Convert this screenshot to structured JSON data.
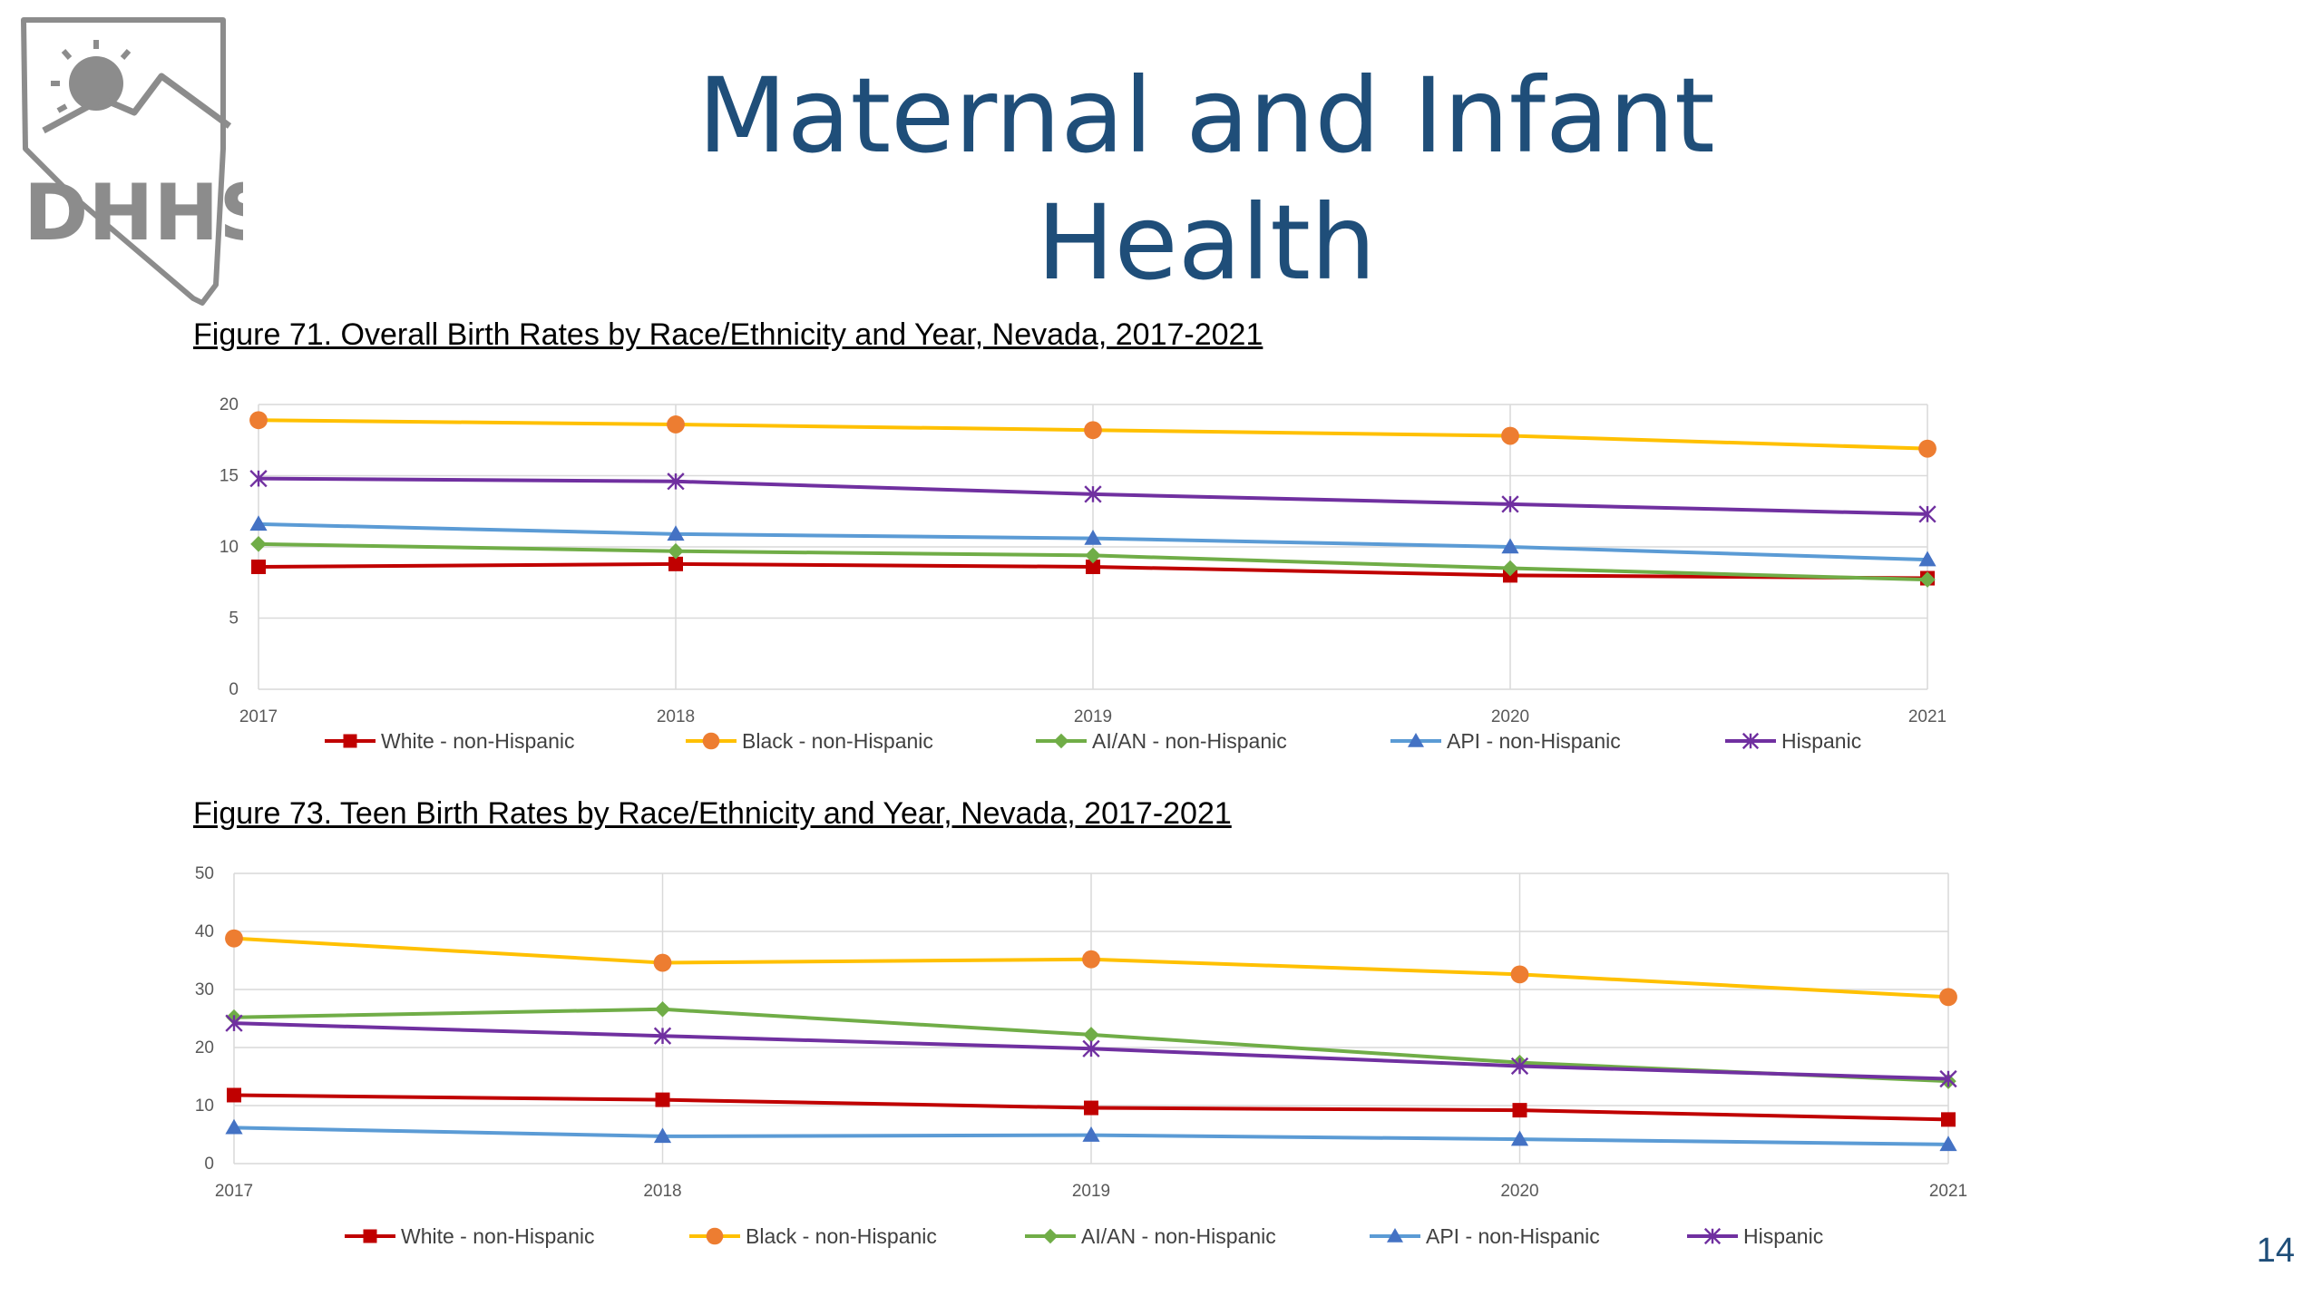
{
  "slide": {
    "title": "Maternal and Infant Health",
    "page_number": "14"
  },
  "logo": {
    "text": "DHHS",
    "colors": {
      "logo": "#8c8c8c"
    }
  },
  "series_styles": {
    "White - non-Hispanic": {
      "color": "#c00000",
      "marker": "square"
    },
    "Black - non-Hispanic": {
      "color": "#ffc000",
      "marker_color": "#ed7d31",
      "marker": "circle"
    },
    "AI/AN - non-Hispanic": {
      "color": "#70ad47",
      "marker": "diamond"
    },
    "API - non-Hispanic": {
      "color": "#5b9bd5",
      "marker_color": "#4472c4",
      "marker": "triangle"
    },
    "Hispanic": {
      "color": "#7030a0",
      "marker": "star"
    }
  },
  "chart_data": [
    {
      "type": "line",
      "title": "Figure 71. Overall Birth Rates by Race/Ethnicity and Year, Nevada, 2017-2021",
      "x": [
        "2017",
        "2018",
        "2019",
        "2020",
        "2021"
      ],
      "ylim": [
        0,
        20
      ],
      "yticks": [
        0,
        5,
        10,
        15,
        20
      ],
      "grid": true,
      "legend": "bottom",
      "series": [
        {
          "name": "White - non-Hispanic",
          "values": [
            8.6,
            8.8,
            8.6,
            8.0,
            7.8
          ]
        },
        {
          "name": "Black - non-Hispanic",
          "values": [
            18.9,
            18.6,
            18.2,
            17.8,
            16.9
          ]
        },
        {
          "name": "AI/AN - non-Hispanic",
          "values": [
            10.2,
            9.7,
            9.4,
            8.5,
            7.7
          ]
        },
        {
          "name": "API - non-Hispanic",
          "values": [
            11.6,
            10.9,
            10.6,
            10.0,
            9.1
          ]
        },
        {
          "name": "Hispanic",
          "values": [
            14.8,
            14.6,
            13.7,
            13.0,
            12.3
          ]
        }
      ]
    },
    {
      "type": "line",
      "title": "Figure 73. Teen Birth Rates by Race/Ethnicity and Year, Nevada, 2017-2021",
      "x": [
        "2017",
        "2018",
        "2019",
        "2020",
        "2021"
      ],
      "ylim": [
        0,
        50
      ],
      "yticks": [
        0,
        10,
        20,
        30,
        40,
        50
      ],
      "grid": true,
      "legend": "bottom",
      "series": [
        {
          "name": "White - non-Hispanic",
          "values": [
            11.8,
            11.0,
            9.6,
            9.2,
            7.6
          ]
        },
        {
          "name": "Black - non-Hispanic",
          "values": [
            38.8,
            34.6,
            35.2,
            32.6,
            28.7
          ]
        },
        {
          "name": "AI/AN - non-Hispanic",
          "values": [
            25.2,
            26.6,
            22.2,
            17.4,
            14.2
          ]
        },
        {
          "name": "API - non-Hispanic",
          "values": [
            6.2,
            4.7,
            4.9,
            4.2,
            3.3
          ]
        },
        {
          "name": "Hispanic",
          "values": [
            24.2,
            22.0,
            19.8,
            16.8,
            14.6
          ]
        }
      ]
    }
  ]
}
